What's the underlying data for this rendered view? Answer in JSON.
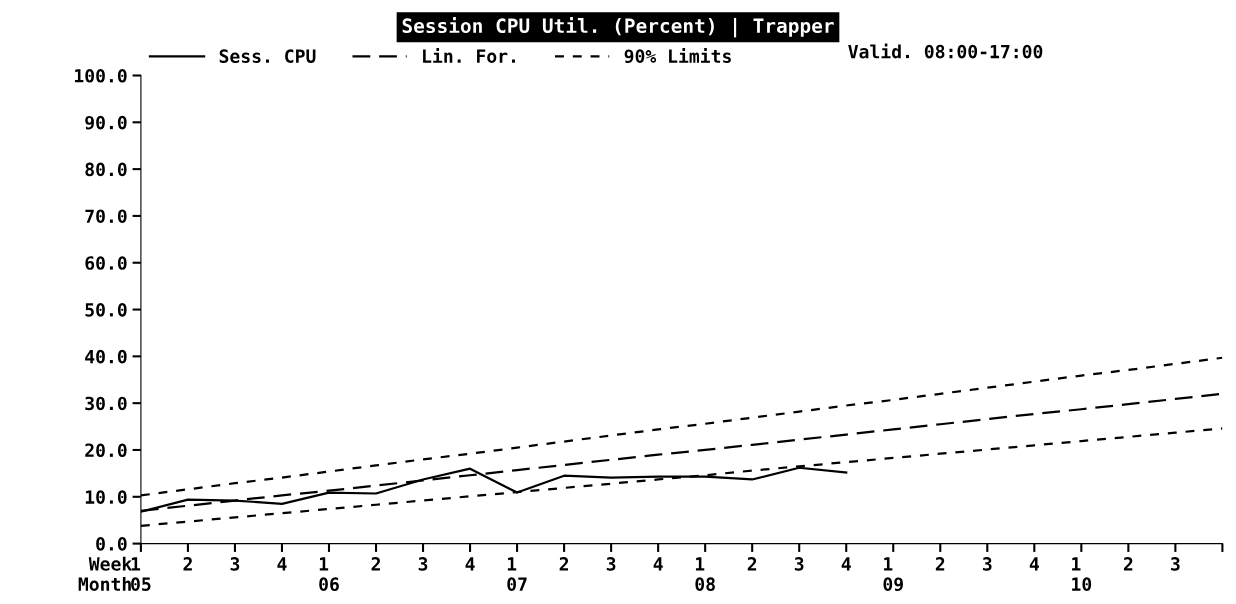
{
  "chart_data": {
    "type": "line",
    "title": "Session CPU Util. (Percent) | Trapper",
    "xlabel": "Week\nMonth",
    "categories": [
      "1\n05",
      "2",
      "3",
      "4",
      "1\n06",
      "2",
      "3",
      "4",
      "1\n07",
      "2",
      "3",
      "4",
      "1\n08",
      "2",
      "3",
      "4",
      "1\n09",
      "2",
      "3",
      "4",
      "1\n10",
      "2",
      "3",
      null
    ],
    "series": [
      {
        "name": "Sess. CPU",
        "color": "#000000",
        "line_style": "solid",
        "values": [
          6.8,
          9.4,
          9.2,
          8.5,
          10.9,
          10.7,
          13.7,
          16.0,
          10.9,
          14.5,
          14.1,
          14.3,
          14.3,
          13.7,
          16.2,
          15.2,
          null,
          null,
          null,
          null,
          null,
          null,
          null,
          null
        ]
      },
      {
        "name": "Lin. For.",
        "color": "#000000",
        "line_style": "dashed",
        "values": [
          7.0,
          8.1,
          9.2,
          10.3,
          11.3,
          12.4,
          13.5,
          14.6,
          15.7,
          16.8,
          17.9,
          19.0,
          20.0,
          21.1,
          22.2,
          23.3,
          24.4,
          25.5,
          26.6,
          27.7,
          28.7,
          29.8,
          30.9,
          32.0
        ]
      },
      {
        "name": "90% Limits",
        "color": "#000000",
        "line_style": "dotted",
        "values": [
          10.3,
          11.6,
          12.9,
          14.1,
          15.4,
          16.7,
          18.0,
          19.2,
          20.5,
          21.8,
          23.1,
          24.4,
          25.6,
          26.9,
          28.2,
          29.5,
          30.7,
          32.0,
          33.3,
          34.6,
          35.9,
          37.1,
          38.4,
          39.7
        ]
      },
      {
        "color": "#000000",
        "line_style": "dotted",
        "values": [
          3.8,
          4.7,
          5.6,
          6.5,
          7.4,
          8.3,
          9.2,
          10.1,
          11.0,
          11.9,
          12.8,
          13.7,
          14.6,
          15.6,
          16.5,
          17.4,
          18.3,
          19.2,
          20.1,
          21.0,
          21.9,
          22.8,
          23.7,
          24.6
        ]
      }
    ],
    "annotations": [
      "Valid. 08:00-17:00"
    ],
    "ylim": [
      0,
      100
    ],
    "yticks": [
      {
        "value": 0,
        "label": "0.0"
      },
      {
        "value": 10,
        "label": "10.0"
      },
      {
        "value": 20,
        "label": "20.0"
      },
      {
        "value": 30,
        "label": "30.0"
      },
      {
        "value": 40,
        "label": "40.0"
      },
      {
        "value": 50,
        "label": "50.0"
      },
      {
        "value": 60,
        "label": "60.0"
      },
      {
        "value": 70,
        "label": "70.0"
      },
      {
        "value": 80,
        "label": "80.0"
      },
      {
        "value": 90,
        "label": "90.0"
      },
      {
        "value": 100,
        "label": "100.0"
      }
    ],
    "grid": false,
    "legend": "top",
    "marker": "none"
  }
}
